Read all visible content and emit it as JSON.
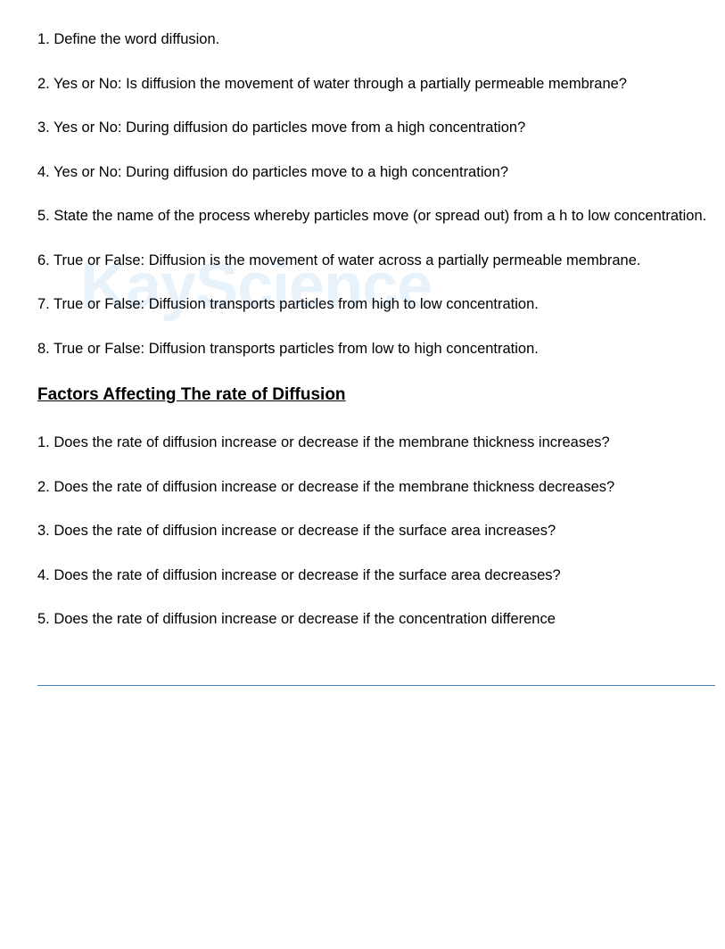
{
  "watermark": {
    "text_kay": "Kay",
    "text_science": "Science",
    "color": "#e8f2fb",
    "fontsize": 72
  },
  "sections": [
    {
      "questions": [
        "1. Define the word diffusion.",
        "2. Yes or No: Is diffusion the movement of water through a partially permeable membrane?",
        "3. Yes or No: During diffusion do particles move from a high concentration?",
        "4. Yes or No: During diffusion do particles move to a high concentration?",
        "5. State the name of the process whereby particles move (or spread out) from a h to low concentration.",
        "6. True or False: Diffusion is the movement of water across a partially permeable membrane.",
        "7. True or False: Diffusion transports particles from high to low concentration.",
        "8. True or False: Diffusion transports particles from low to high concentration."
      ]
    },
    {
      "heading": "Factors Affecting The rate of Diffusion",
      "questions": [
        "1. Does the rate of diffusion increase or decrease if the membrane thickness increases?",
        "2. Does the rate of diffusion increase or decrease if the membrane thickness decreases?",
        "3. Does the rate of diffusion increase or decrease if the surface area increases?",
        "4. Does the rate of diffusion increase or decrease if the surface area decreases?",
        "5. Does the rate of diffusion increase or decrease if the concentration difference"
      ]
    }
  ],
  "text_color": "#000000",
  "background_color": "#ffffff",
  "divider_color": "#4a7bb8"
}
